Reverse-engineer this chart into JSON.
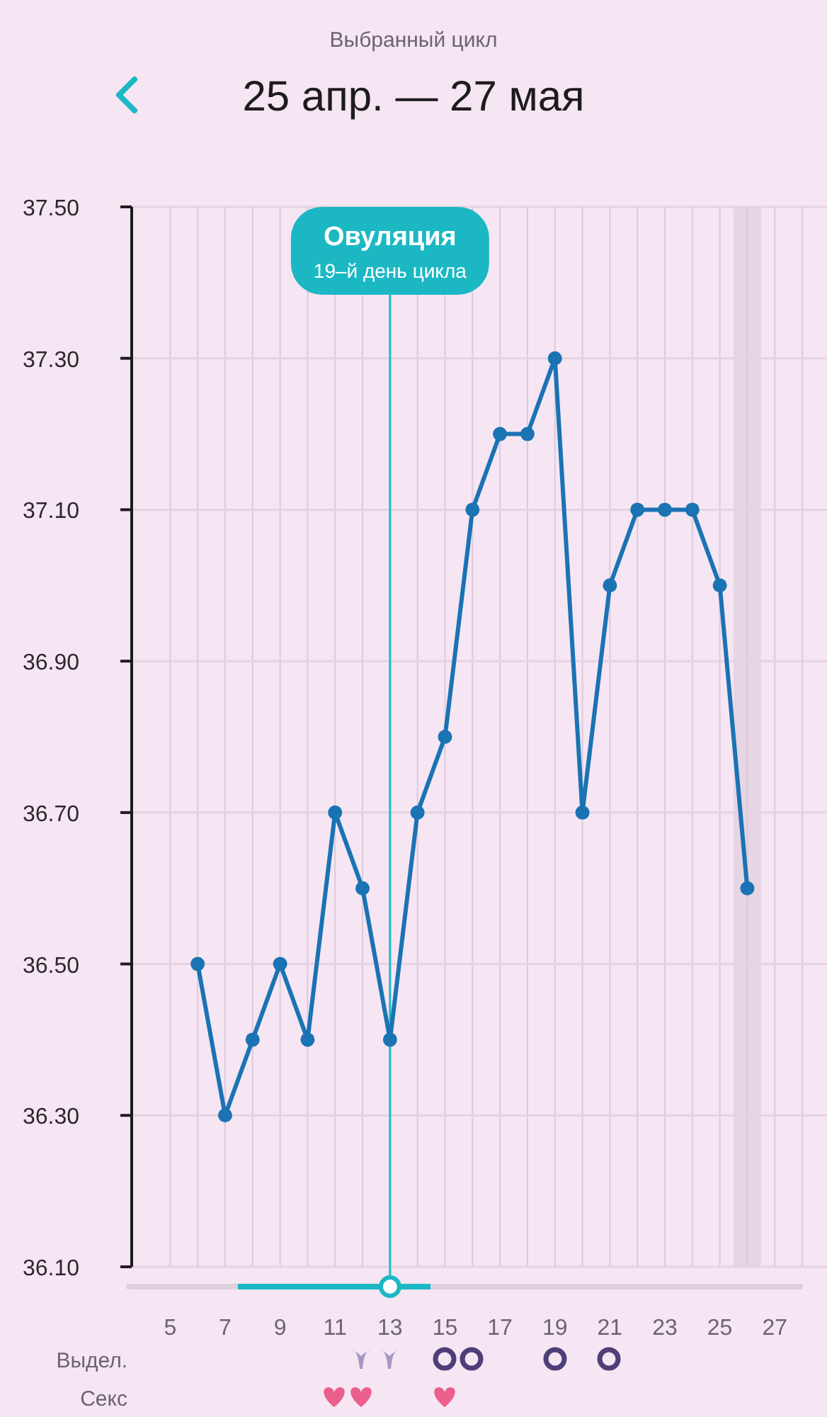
{
  "chart_data": {
    "type": "line",
    "subtitle": "Выбранный цикл",
    "title": "25 апр. — 27 мая",
    "x": [
      6,
      7,
      8,
      9,
      10,
      11,
      12,
      13,
      14,
      15,
      16,
      17,
      18,
      19,
      20,
      21,
      22,
      23,
      24,
      25,
      26
    ],
    "series": [
      {
        "color": "#1a73b3",
        "values": [
          36.5,
          36.3,
          36.4,
          36.5,
          36.4,
          36.7,
          36.6,
          36.4,
          36.7,
          36.8,
          37.1,
          37.2,
          37.2,
          37.3,
          36.7,
          37.0,
          37.1,
          37.1,
          37.1,
          37.0,
          36.6
        ]
      }
    ],
    "xlim": [
      3.6,
      28.9
    ],
    "xticks": [
      5,
      {
        "value": 6,
        "label": null
      },
      7,
      {
        "value": 8,
        "label": null
      },
      9,
      {
        "value": 10,
        "label": null
      },
      11,
      {
        "value": 12,
        "label": null
      },
      13,
      {
        "value": 14,
        "label": null
      },
      15,
      {
        "value": 16,
        "label": null
      },
      17,
      {
        "value": 18,
        "label": null
      },
      19,
      {
        "value": 20,
        "label": null
      },
      21,
      {
        "value": 22,
        "label": null
      },
      23,
      {
        "value": 24,
        "label": null
      },
      25,
      {
        "value": 26,
        "label": null
      },
      27,
      {
        "value": 28,
        "label": null
      }
    ],
    "ylim": [
      36.1,
      37.5
    ],
    "yticks": [
      {
        "value": 36.1,
        "label": "36.10"
      },
      {
        "value": 36.3,
        "label": "36.30"
      },
      {
        "value": 36.5,
        "label": "36.50"
      },
      {
        "value": 36.7,
        "label": "36.70"
      },
      {
        "value": 36.9,
        "label": "36.90"
      },
      {
        "value": 37.1,
        "label": "37.10"
      },
      {
        "value": 37.3,
        "label": "37.30"
      },
      {
        "value": 37.5,
        "label": "37.50"
      }
    ],
    "grid": true,
    "marker": "circle",
    "line_style": "solid",
    "ref_lines": [
      {
        "axis": "x",
        "value": 13,
        "label": "Овуляция",
        "color": "#1bb8c4"
      }
    ],
    "bands": [
      {
        "axis": "x",
        "from": 25.5,
        "to": 26.5,
        "color": "#e6d5e3"
      }
    ],
    "annotations": [
      "19–й день цикла",
      "Выдел.",
      "Секс"
    ]
  }
}
